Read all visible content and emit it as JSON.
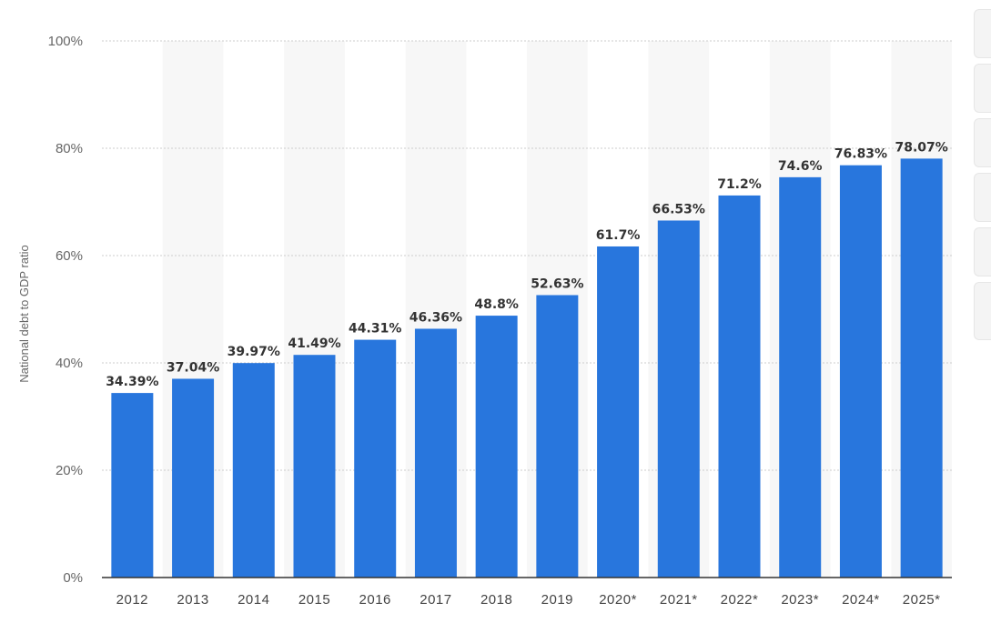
{
  "chart_data": {
    "type": "bar",
    "title": "",
    "xlabel": "",
    "ylabel": "National debt to GDP ratio",
    "categories": [
      "2012",
      "2013",
      "2014",
      "2015",
      "2016",
      "2017",
      "2018",
      "2019",
      "2020*",
      "2021*",
      "2022*",
      "2023*",
      "2024*",
      "2025*"
    ],
    "values": [
      34.39,
      37.04,
      39.97,
      41.49,
      44.31,
      46.36,
      48.8,
      52.63,
      61.7,
      66.53,
      71.2,
      74.6,
      76.83,
      78.07
    ],
    "value_labels": [
      "34.39%",
      "37.04%",
      "39.97%",
      "41.49%",
      "44.31%",
      "46.36%",
      "48.8%",
      "52.63%",
      "61.7%",
      "66.53%",
      "71.2%",
      "74.6%",
      "76.83%",
      "78.07%"
    ],
    "ylim": [
      0,
      100
    ],
    "y_ticks": [
      0,
      20,
      40,
      60,
      80,
      100
    ],
    "y_tick_labels": [
      "0%",
      "20%",
      "40%",
      "60%",
      "80%",
      "100%"
    ],
    "grid": true,
    "legend": "none",
    "colors": {
      "bar": "#2876dd",
      "column_band": "#f7f7f7",
      "grid": "#cccccc",
      "axis": "#333333"
    }
  }
}
